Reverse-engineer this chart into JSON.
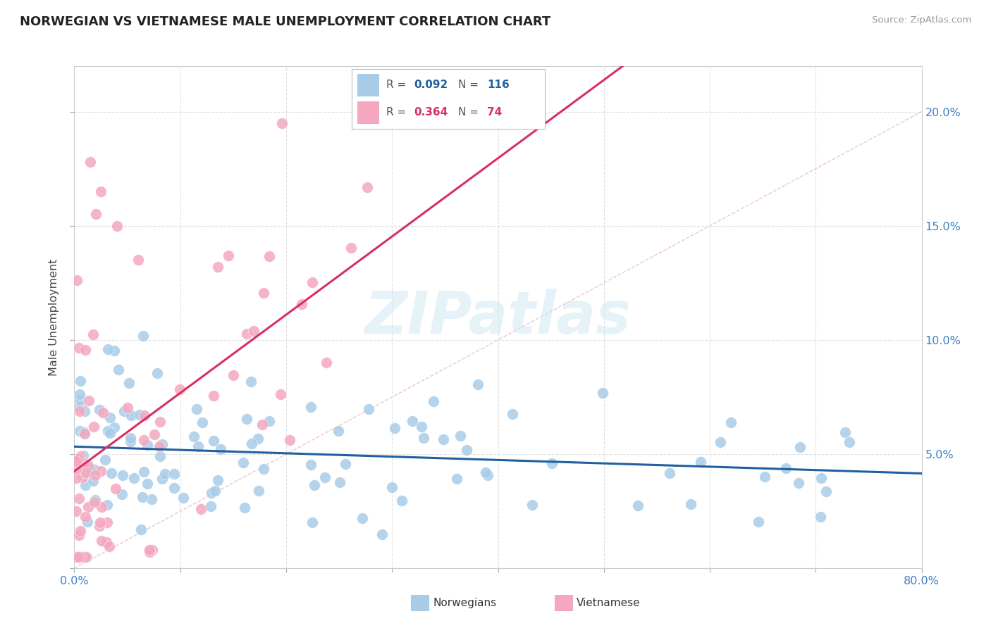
{
  "title": "NORWEGIAN VS VIETNAMESE MALE UNEMPLOYMENT CORRELATION CHART",
  "source": "Source: ZipAtlas.com",
  "ylabel": "Male Unemployment",
  "xmin": 0.0,
  "xmax": 0.8,
  "ymin": 0.0,
  "ymax": 0.22,
  "blue_color": "#a8cce8",
  "pink_color": "#f4a8bf",
  "blue_line_color": "#2060a0",
  "pink_line_color": "#d83060",
  "diag_color": "#e8c0cc",
  "watermark_color": "#d0e8f4",
  "R_blue": 0.092,
  "N_blue": 116,
  "R_pink": 0.364,
  "N_pink": 74,
  "legend_blue": "Norwegians",
  "legend_pink": "Vietnamese",
  "bg_color": "#ffffff",
  "grid_color": "#e0e0e0",
  "right_tick_color": "#4080c0",
  "title_color": "#222222",
  "source_color": "#999999"
}
